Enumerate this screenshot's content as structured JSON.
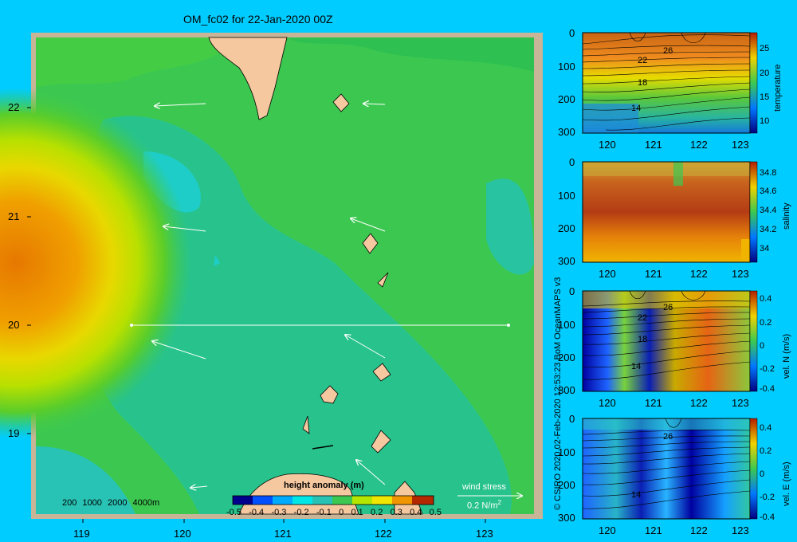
{
  "map": {
    "title": "OM_fc02 for 22-Jan-2020 00Z",
    "xticks": [
      "119",
      "120",
      "121",
      "122",
      "123"
    ],
    "yticks": [
      "22",
      "21",
      "20",
      "19"
    ],
    "depth_legend": [
      "200",
      "1000",
      "2000",
      "4000m"
    ],
    "colorbar": {
      "label": "height anomaly (m)",
      "ticks": [
        "-0.5",
        "-0.4",
        "-0.3",
        "-0.2",
        "-0.1",
        "0",
        "0.1",
        "0.2",
        "0.3",
        "0.4",
        "0.5"
      ]
    },
    "wind": {
      "label": "wind stress",
      "scale": "0.2 N/m",
      "scale_sup": "2"
    }
  },
  "credit": "© CSIRO 2020   02-Feb-2020 12:53:23 BoM OceanMAPS v3",
  "chart_data": [
    {
      "type": "heatmap",
      "title": "OM_fc02 for 22-Jan-2020 00Z",
      "variable": "height anomaly (m)",
      "x_ticks": [
        119,
        120,
        121,
        122,
        123
      ],
      "y_ticks": [
        22,
        21,
        20,
        19
      ],
      "colorbar_range": [
        -0.5,
        0.5
      ],
      "section_line": {
        "lat": 20,
        "lon": [
          119.5,
          123.2
        ]
      }
    },
    {
      "type": "heatmap",
      "variable": "temperature",
      "x_ticks": [
        120,
        121,
        122,
        123
      ],
      "y_ticks": [
        0,
        100,
        200,
        300
      ],
      "colorbar_ticks": [
        "25",
        "20",
        "15",
        "10"
      ],
      "contour_labels": [
        "26",
        "22",
        "18",
        "14"
      ]
    },
    {
      "type": "heatmap",
      "variable": "salinity",
      "x_ticks": [
        120,
        121,
        122,
        123
      ],
      "y_ticks": [
        0,
        100,
        200,
        300
      ],
      "colorbar_ticks": [
        "34.8",
        "34.6",
        "34.4",
        "34.2",
        "34"
      ],
      "contour_labels": []
    },
    {
      "type": "heatmap",
      "variable": "vel. N (m/s)",
      "x_ticks": [
        120,
        121,
        122,
        123
      ],
      "y_ticks": [
        0,
        100,
        200,
        300
      ],
      "colorbar_ticks": [
        "0.4",
        "0.2",
        "0",
        "-0.2",
        "-0.4"
      ],
      "contour_labels": [
        "26",
        "22",
        "18",
        "14"
      ]
    },
    {
      "type": "heatmap",
      "variable": "vel. E (m/s)",
      "x_ticks": [
        120,
        121,
        122,
        123
      ],
      "y_ticks": [
        0,
        100,
        200,
        300
      ],
      "colorbar_ticks": [
        "0.4",
        "0.2",
        "0",
        "-0.2",
        "-0.4"
      ],
      "contour_labels": [
        "26",
        "14"
      ]
    }
  ]
}
